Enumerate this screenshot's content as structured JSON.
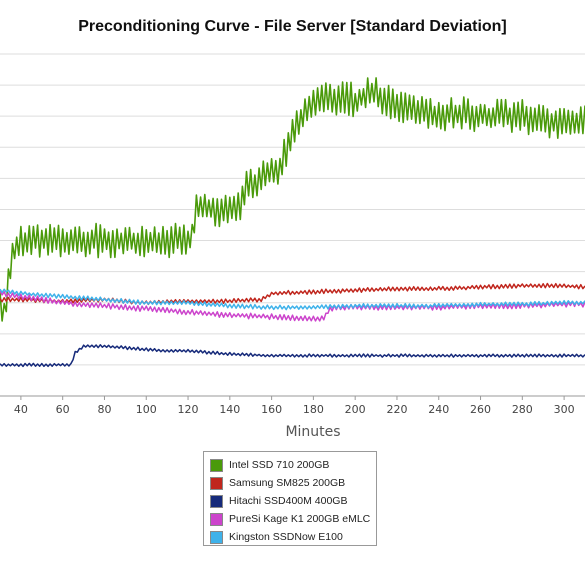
{
  "chart_data": {
    "type": "line",
    "title": "Preconditioning Curve - File Server [Standard Deviation]",
    "xlabel": "Minutes",
    "ylabel": "",
    "xlim": [
      30,
      310
    ],
    "ylim": [
      0,
      11
    ],
    "y_ticks_labeled": false,
    "x_ticks": [
      40,
      60,
      80,
      100,
      120,
      140,
      160,
      180,
      200,
      220,
      240,
      260,
      280,
      300
    ],
    "grid": "horizontal",
    "legend_position": "bottom",
    "series": [
      {
        "name": "Intel SSD 710 200GB",
        "color": "#4a9a0a",
        "points": [
          [
            30,
            2.9
          ],
          [
            32,
            2.5
          ],
          [
            34,
            3.6
          ],
          [
            36,
            4.6
          ],
          [
            38,
            4.8
          ],
          [
            40,
            5.0
          ],
          [
            50,
            5.0
          ],
          [
            60,
            5.0
          ],
          [
            70,
            5.0
          ],
          [
            80,
            5.0
          ],
          [
            90,
            5.0
          ],
          [
            100,
            5.0
          ],
          [
            110,
            5.0
          ],
          [
            118,
            5.0
          ],
          [
            122,
            5.1
          ],
          [
            124,
            6.0
          ],
          [
            130,
            6.0
          ],
          [
            140,
            6.0
          ],
          [
            145,
            6.1
          ],
          [
            148,
            6.7
          ],
          [
            152,
            6.8
          ],
          [
            156,
            7.3
          ],
          [
            160,
            7.2
          ],
          [
            164,
            7.4
          ],
          [
            168,
            8.0
          ],
          [
            170,
            8.4
          ],
          [
            174,
            8.9
          ],
          [
            178,
            9.2
          ],
          [
            182,
            9.5
          ],
          [
            186,
            9.6
          ],
          [
            190,
            9.5
          ],
          [
            195,
            9.6
          ],
          [
            200,
            9.5
          ],
          [
            205,
            9.7
          ],
          [
            210,
            9.7
          ],
          [
            215,
            9.5
          ],
          [
            220,
            9.3
          ],
          [
            230,
            9.2
          ],
          [
            240,
            9.0
          ],
          [
            250,
            9.1
          ],
          [
            260,
            9.0
          ],
          [
            270,
            9.0
          ],
          [
            280,
            9.0
          ],
          [
            290,
            8.8
          ],
          [
            300,
            8.7
          ],
          [
            310,
            8.8
          ]
        ],
        "noise": 0.55
      },
      {
        "name": "Samsung SM825 200GB",
        "color": "#c0261d",
        "points": [
          [
            30,
            3.1
          ],
          [
            40,
            3.1
          ],
          [
            60,
            3.05
          ],
          [
            80,
            3.1
          ],
          [
            100,
            3.0
          ],
          [
            120,
            3.05
          ],
          [
            140,
            3.05
          ],
          [
            155,
            3.1
          ],
          [
            160,
            3.3
          ],
          [
            180,
            3.35
          ],
          [
            200,
            3.4
          ],
          [
            220,
            3.45
          ],
          [
            240,
            3.45
          ],
          [
            260,
            3.5
          ],
          [
            280,
            3.55
          ],
          [
            300,
            3.55
          ],
          [
            310,
            3.5
          ]
        ],
        "noise": 0.07
      },
      {
        "name": "Hitachi SSD400M 400GB",
        "color": "#162a7a",
        "points": [
          [
            30,
            1.0
          ],
          [
            40,
            1.0
          ],
          [
            50,
            1.0
          ],
          [
            64,
            1.0
          ],
          [
            66,
            1.4
          ],
          [
            70,
            1.6
          ],
          [
            80,
            1.6
          ],
          [
            90,
            1.55
          ],
          [
            100,
            1.5
          ],
          [
            110,
            1.45
          ],
          [
            120,
            1.45
          ],
          [
            130,
            1.4
          ],
          [
            140,
            1.35
          ],
          [
            160,
            1.3
          ],
          [
            180,
            1.3
          ],
          [
            200,
            1.3
          ],
          [
            220,
            1.3
          ],
          [
            240,
            1.3
          ],
          [
            260,
            1.3
          ],
          [
            280,
            1.3
          ],
          [
            300,
            1.3
          ],
          [
            310,
            1.3
          ]
        ],
        "noise": 0.05
      },
      {
        "name": "PureSi Kage K1 200GB eMLC",
        "color": "#cc44cc",
        "points": [
          [
            30,
            3.3
          ],
          [
            40,
            3.2
          ],
          [
            50,
            3.1
          ],
          [
            60,
            3.0
          ],
          [
            80,
            2.9
          ],
          [
            100,
            2.8
          ],
          [
            120,
            2.7
          ],
          [
            140,
            2.6
          ],
          [
            160,
            2.55
          ],
          [
            175,
            2.5
          ],
          [
            185,
            2.5
          ],
          [
            188,
            2.8
          ],
          [
            190,
            2.85
          ],
          [
            200,
            2.85
          ],
          [
            220,
            2.85
          ],
          [
            240,
            2.85
          ],
          [
            260,
            2.9
          ],
          [
            280,
            2.9
          ],
          [
            300,
            2.95
          ],
          [
            310,
            2.95
          ]
        ],
        "noise": 0.09
      },
      {
        "name": "Kingston SSDNow E100",
        "color": "#3fb2ea",
        "points": [
          [
            30,
            3.4
          ],
          [
            40,
            3.3
          ],
          [
            60,
            3.2
          ],
          [
            80,
            3.1
          ],
          [
            100,
            3.0
          ],
          [
            120,
            3.0
          ],
          [
            140,
            2.9
          ],
          [
            160,
            2.85
          ],
          [
            180,
            2.85
          ],
          [
            200,
            2.9
          ],
          [
            220,
            2.9
          ],
          [
            240,
            2.9
          ],
          [
            260,
            2.95
          ],
          [
            280,
            2.95
          ],
          [
            300,
            3.0
          ],
          [
            310,
            3.0
          ]
        ],
        "noise": 0.07
      }
    ]
  }
}
